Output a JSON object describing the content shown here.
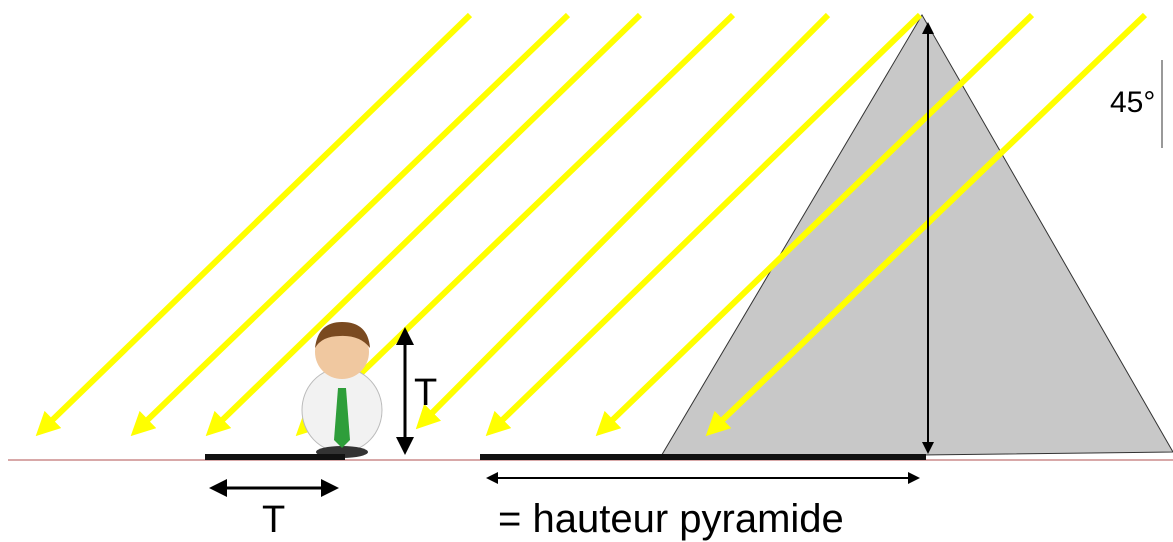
{
  "labels": {
    "angle": "45°",
    "person_height": "T",
    "person_shadow": "T",
    "pyramid_shadow": "= hauteur pyramide"
  }
}
